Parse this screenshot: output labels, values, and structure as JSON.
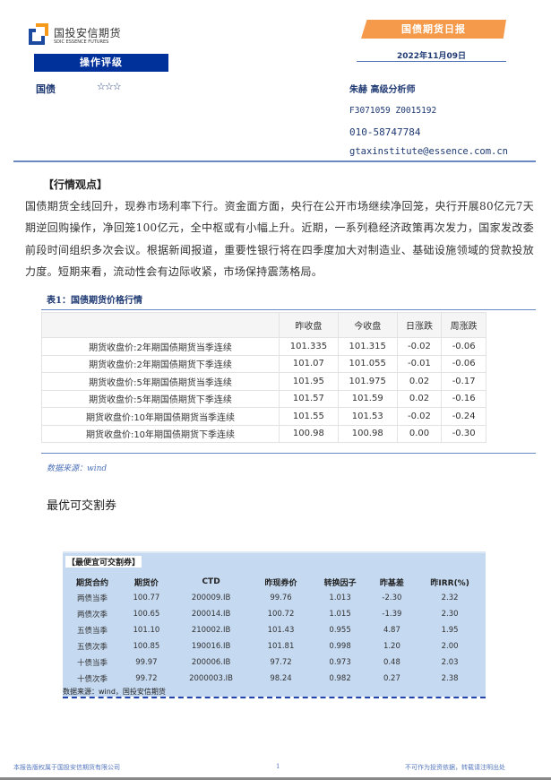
{
  "header": {
    "logo": {
      "cn": "国投安信期货",
      "en": "SDIC ESSENCE FUTURES"
    },
    "report_type": "国债期货日报",
    "date": "2022年11月09日",
    "rating_label": "操作评级",
    "category": "国债",
    "stars": "☆☆☆",
    "analyst": "朱赫 高级分析师",
    "license": "F3071059 Z0015192",
    "phone": "010-58747784",
    "email": "gtaxinstitute@essence.com.cn"
  },
  "view": {
    "title": "【行情观点】",
    "text": "国债期货全线回升，现券市场利率下行。资金面方面，央行在公开市场继续净回笼，央行开展80亿元7天期逆回购操作，净回笼100亿元，全中枢或有小幅上升。近期，一系列稳经济政策再次发力，国家发改委前段时间组织多次会议。根据新闻报道，重要性银行将在四季度加大对制造业、基础设施领域的贷款投放力度。短期来看，流动性会有边际收紧，市场保持震荡格局。"
  },
  "table1": {
    "title": "表1：国债期货价格行情",
    "headers": [
      "",
      "昨收盘",
      "今收盘",
      "日涨跌",
      "周涨跌"
    ],
    "rows": [
      [
        "期货收盘价:2年期国债期货当季连续",
        "101.335",
        "101.315",
        "-0.02",
        "-0.06"
      ],
      [
        "期货收盘价:2年期国债期货下季连续",
        "101.07",
        "101.055",
        "-0.01",
        "-0.06"
      ],
      [
        "期货收盘价:5年期国债期货当季连续",
        "101.95",
        "101.975",
        "0.02",
        "-0.17"
      ],
      [
        "期货收盘价:5年期国债期货下季连续",
        "101.57",
        "101.59",
        "0.02",
        "-0.16"
      ],
      [
        "期货收盘价:10年期国债期货当季连续",
        "101.55",
        "101.53",
        "-0.02",
        "-0.24"
      ],
      [
        "期货收盘价:10年期国债期货下季连续",
        "100.98",
        "100.98",
        "0.00",
        "-0.30"
      ]
    ],
    "source": "数据来源：wind"
  },
  "ctd": {
    "heading": "最优可交割券",
    "title": "【最便宜可交割券】",
    "headers": [
      "期货合约",
      "期货价",
      "CTD",
      "昨现券价",
      "转换因子",
      "昨基差",
      "昨IRR(%)"
    ],
    "rows": [
      [
        "两债当季",
        "100.77",
        "200009.IB",
        "99.76",
        "1.013",
        "-2.30",
        "2.32"
      ],
      [
        "两债次季",
        "100.65",
        "200014.IB",
        "100.72",
        "1.015",
        "-1.39",
        "2.30"
      ],
      [
        "五债当季",
        "101.10",
        "210002.IB",
        "101.43",
        "0.955",
        "4.87",
        "1.95"
      ],
      [
        "五债次季",
        "100.85",
        "190016.IB",
        "101.81",
        "0.998",
        "1.20",
        "2.00"
      ],
      [
        "十债当季",
        "99.97",
        "200006.IB",
        "97.72",
        "0.973",
        "0.48",
        "2.03"
      ],
      [
        "十债次季",
        "99.72",
        "2000003.IB",
        "98.24",
        "0.982",
        "0.27",
        "2.38"
      ]
    ],
    "source": "数据来源：wind，国投安信期货"
  },
  "footer": {
    "left": "本报告版权属于国投安信期货有限公司",
    "page": "1",
    "right": "不可作为投资依据，转载请注明出处"
  },
  "colors": {
    "brand_blue": "#00309a",
    "orange": "#f59a4a",
    "table_bg": "#c5d9f0"
  }
}
